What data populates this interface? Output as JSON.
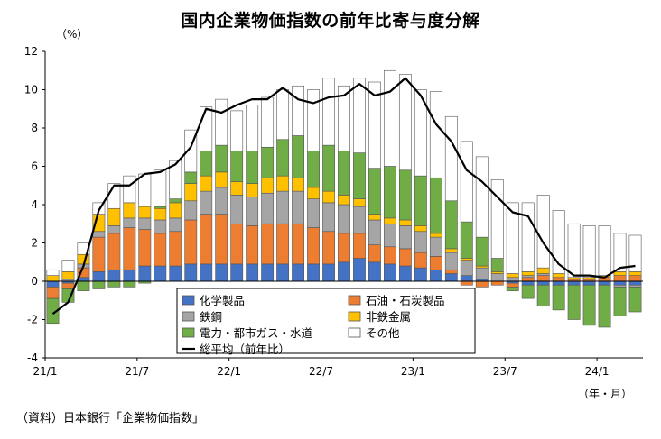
{
  "source_note": "（資料）日本銀行「企業物価指数」",
  "chart_data": {
    "type": "bar",
    "stacked": true,
    "title": "国内企業物価指数の前年比寄与度分解",
    "yunit": "（%）",
    "xunit": "（年・月）",
    "ylim": [
      -4,
      12
    ],
    "yticks": [
      -4,
      -2,
      0,
      2,
      4,
      6,
      8,
      10,
      12
    ],
    "grid": false,
    "legend_position": "bottom-center (inside plot)",
    "x_tick_labels": [
      {
        "index": 0,
        "label": "21/1"
      },
      {
        "index": 6,
        "label": "21/7"
      },
      {
        "index": 12,
        "label": "22/1"
      },
      {
        "index": 18,
        "label": "22/7"
      },
      {
        "index": 24,
        "label": "23/1"
      },
      {
        "index": 30,
        "label": "23/7"
      },
      {
        "index": 36,
        "label": "24/1"
      }
    ],
    "categories": [
      "21/1",
      "21/2",
      "21/3",
      "21/4",
      "21/5",
      "21/6",
      "21/7",
      "21/8",
      "21/9",
      "21/10",
      "21/11",
      "21/12",
      "22/1",
      "22/2",
      "22/3",
      "22/4",
      "22/5",
      "22/6",
      "22/7",
      "22/8",
      "22/9",
      "22/10",
      "22/11",
      "22/12",
      "23/1",
      "23/2",
      "23/3",
      "23/4",
      "23/5",
      "23/6",
      "23/7",
      "23/8",
      "23/9",
      "23/10",
      "23/11",
      "23/12",
      "24/1",
      "24/2",
      "24/3"
    ],
    "series": [
      {
        "name": "化学製品",
        "color": "#4472c4",
        "values": [
          -0.3,
          -0.1,
          0.2,
          0.5,
          0.6,
          0.6,
          0.8,
          0.8,
          0.8,
          0.9,
          0.9,
          0.9,
          0.9,
          0.9,
          0.9,
          0.9,
          0.9,
          0.9,
          0.9,
          1.0,
          1.2,
          1.0,
          0.9,
          0.8,
          0.7,
          0.6,
          0.4,
          0.3,
          0.1,
          0.0,
          -0.1,
          -0.2,
          -0.2,
          -0.2,
          -0.2,
          -0.2,
          -0.2,
          -0.2,
          -0.2
        ]
      },
      {
        "name": "石油・石炭製品",
        "color": "#ed7d31",
        "values": [
          -0.6,
          -0.3,
          0.5,
          1.8,
          1.9,
          2.2,
          1.9,
          1.7,
          1.8,
          2.3,
          2.6,
          2.6,
          2.1,
          2.0,
          2.1,
          2.1,
          2.1,
          1.9,
          1.7,
          1.5,
          1.3,
          0.9,
          0.9,
          0.9,
          0.8,
          0.7,
          0.2,
          -0.2,
          -0.3,
          -0.2,
          -0.2,
          0.2,
          0.3,
          0.2,
          0.1,
          0.1,
          0.2,
          0.3,
          0.3
        ]
      },
      {
        "name": "鉄鋼",
        "color": "#a5a5a5",
        "values": [
          0.0,
          0.1,
          0.2,
          0.3,
          0.4,
          0.5,
          0.6,
          0.7,
          0.7,
          1.0,
          1.2,
          1.4,
          1.5,
          1.5,
          1.6,
          1.7,
          1.7,
          1.5,
          1.5,
          1.5,
          1.4,
          1.3,
          1.2,
          1.2,
          1.1,
          1.0,
          0.9,
          0.8,
          0.6,
          0.4,
          0.2,
          0.1,
          0.1,
          0.0,
          0.0,
          0.0,
          0.0,
          -0.1,
          -0.1
        ]
      },
      {
        "name": "非鉄金属",
        "color": "#ffc000",
        "values": [
          0.3,
          0.4,
          0.5,
          0.9,
          0.9,
          0.8,
          0.6,
          0.6,
          0.8,
          0.9,
          0.8,
          0.8,
          0.7,
          0.7,
          0.8,
          0.8,
          0.7,
          0.6,
          0.6,
          0.5,
          0.4,
          0.3,
          0.3,
          0.3,
          0.3,
          0.2,
          0.2,
          0.1,
          0.1,
          0.1,
          0.2,
          0.2,
          0.3,
          0.2,
          0.1,
          0.1,
          0.1,
          0.2,
          0.2
        ]
      },
      {
        "name": "電力・都市ガス・水道",
        "color": "#70ad47",
        "values": [
          -1.3,
          -0.7,
          -0.5,
          -0.4,
          -0.3,
          -0.3,
          -0.1,
          0.1,
          0.2,
          0.6,
          1.3,
          1.4,
          1.6,
          1.7,
          1.6,
          1.9,
          2.2,
          1.9,
          2.4,
          2.3,
          2.4,
          2.4,
          2.7,
          2.6,
          2.6,
          2.9,
          2.5,
          1.9,
          1.5,
          0.7,
          -0.2,
          -0.7,
          -1.1,
          -1.3,
          -1.8,
          -2.1,
          -2.2,
          -1.5,
          -1.3
        ]
      },
      {
        "name": "その他",
        "color": "#ffffff",
        "values": [
          0.3,
          0.6,
          0.6,
          0.6,
          1.3,
          1.4,
          1.7,
          1.9,
          2.0,
          2.2,
          2.3,
          2.4,
          2.1,
          2.4,
          2.6,
          2.6,
          2.6,
          3.2,
          3.5,
          3.4,
          3.9,
          4.5,
          5.0,
          5.0,
          4.5,
          4.5,
          4.4,
          4.2,
          4.2,
          4.1,
          3.7,
          3.6,
          3.8,
          3.3,
          2.8,
          2.7,
          2.6,
          2.0,
          1.9
        ]
      }
    ],
    "line": {
      "name": "総平均（前年比）",
      "color": "#000000",
      "values": [
        -1.7,
        -1.1,
        0.8,
        3.7,
        5.0,
        5.0,
        5.6,
        5.7,
        6.1,
        7.0,
        9.0,
        8.8,
        9.2,
        9.5,
        9.5,
        10.1,
        9.5,
        9.3,
        9.6,
        9.7,
        10.3,
        9.7,
        9.9,
        10.6,
        9.7,
        8.2,
        7.3,
        5.8,
        5.2,
        4.4,
        3.6,
        3.4,
        2.0,
        0.9,
        0.3,
        0.3,
        0.2,
        0.7,
        0.8
      ]
    }
  }
}
